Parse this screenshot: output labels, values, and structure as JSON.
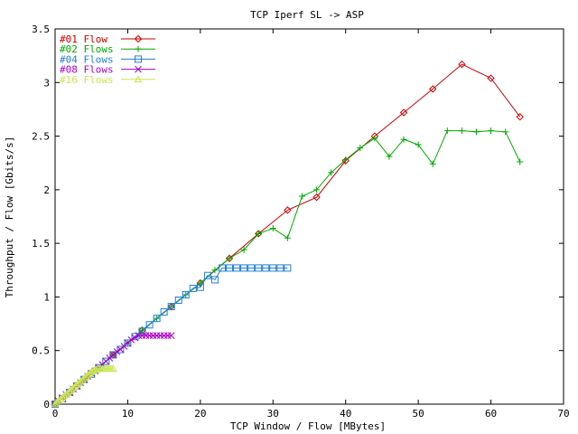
{
  "chart_data": {
    "type": "line",
    "title": "TCP Iperf SL -> ASP",
    "xlabel": "TCP Window / Flow [MBytes]",
    "ylabel": "Throughput / Flow [Gbits/s]",
    "xlim": [
      0,
      70
    ],
    "ylim": [
      0,
      3.5
    ],
    "xticks": [
      "0",
      "10",
      "20",
      "30",
      "40",
      "50",
      "60",
      "70"
    ],
    "yticks": [
      "0",
      "0.5",
      "1",
      "1.5",
      "2",
      "2.5",
      "3",
      "3.5"
    ],
    "grid": false,
    "legend_position": "top-left",
    "series": [
      {
        "name": "#01 Flow",
        "color": "#cc0000",
        "marker": "diamond",
        "x": [
          0,
          4,
          8,
          12,
          16,
          20,
          24,
          28,
          32,
          36,
          40,
          44,
          48,
          52,
          56,
          60,
          64
        ],
        "y": [
          0,
          0.23,
          0.46,
          0.69,
          0.91,
          1.13,
          1.36,
          1.59,
          1.81,
          1.93,
          2.27,
          2.5,
          2.72,
          2.94,
          3.17,
          3.04,
          2.68
        ]
      },
      {
        "name": "#02 Flows",
        "color": "#00aa00",
        "marker": "plus",
        "x": [
          0,
          2,
          4,
          6,
          8,
          10,
          12,
          14,
          16,
          18,
          20,
          22,
          24,
          26,
          28,
          30,
          32,
          34,
          36,
          38,
          40,
          42,
          44,
          46,
          48,
          50,
          52,
          54,
          56,
          58,
          60,
          62,
          64
        ],
        "y": [
          0,
          0.11,
          0.23,
          0.34,
          0.46,
          0.57,
          0.69,
          0.8,
          0.91,
          1.02,
          1.13,
          1.25,
          1.36,
          1.44,
          1.59,
          1.64,
          1.55,
          1.94,
          2.0,
          2.16,
          2.28,
          2.39,
          2.48,
          2.31,
          2.47,
          2.42,
          2.24,
          2.55,
          2.55,
          2.54,
          2.55,
          2.54,
          2.26
        ]
      },
      {
        "name": "#04 Flows",
        "color": "#1e7fd6",
        "marker": "square",
        "x": [
          0,
          1,
          2,
          3,
          4,
          5,
          6,
          7,
          8,
          9,
          10,
          11,
          12,
          13,
          14,
          15,
          16,
          17,
          18,
          19,
          20,
          21,
          22,
          23,
          24,
          25,
          26,
          27,
          28,
          29,
          30,
          31,
          32
        ],
        "y": [
          0,
          0.05,
          0.11,
          0.17,
          0.23,
          0.28,
          0.34,
          0.4,
          0.46,
          0.51,
          0.57,
          0.63,
          0.68,
          0.74,
          0.8,
          0.86,
          0.91,
          0.97,
          1.02,
          1.08,
          1.09,
          1.2,
          1.16,
          1.27,
          1.27,
          1.27,
          1.27,
          1.27,
          1.27,
          1.27,
          1.27,
          1.27,
          1.27
        ]
      },
      {
        "name": "#08 Flows",
        "color": "#aa00cc",
        "marker": "cross",
        "x": [
          0,
          0.5,
          1,
          1.5,
          2,
          2.5,
          3,
          3.5,
          4,
          4.5,
          5,
          5.5,
          6,
          6.5,
          7,
          7.5,
          8,
          8.5,
          9,
          9.5,
          10,
          10.5,
          11,
          11.5,
          12,
          12.5,
          13,
          13.5,
          14,
          14.5,
          15,
          15.5,
          16
        ],
        "y": [
          0,
          0.03,
          0.06,
          0.09,
          0.11,
          0.14,
          0.17,
          0.2,
          0.23,
          0.26,
          0.29,
          0.31,
          0.34,
          0.37,
          0.4,
          0.43,
          0.46,
          0.49,
          0.51,
          0.54,
          0.57,
          0.6,
          0.62,
          0.64,
          0.64,
          0.64,
          0.64,
          0.64,
          0.64,
          0.64,
          0.64,
          0.64,
          0.64
        ]
      },
      {
        "name": "#16 Flows",
        "color": "#c8e650",
        "marker": "triangle",
        "x": [
          0,
          0.25,
          0.5,
          0.75,
          1,
          1.25,
          1.5,
          1.75,
          2,
          2.25,
          2.5,
          2.75,
          3,
          3.25,
          3.5,
          3.75,
          4,
          4.25,
          4.5,
          4.75,
          5,
          5.25,
          5.5,
          5.75,
          6,
          6.25,
          6.5,
          6.75,
          7,
          7.25,
          7.5,
          7.75,
          8
        ],
        "y": [
          0,
          0.015,
          0.03,
          0.045,
          0.06,
          0.075,
          0.09,
          0.105,
          0.12,
          0.135,
          0.15,
          0.165,
          0.18,
          0.195,
          0.21,
          0.225,
          0.24,
          0.255,
          0.27,
          0.285,
          0.3,
          0.31,
          0.32,
          0.32,
          0.33,
          0.33,
          0.33,
          0.33,
          0.33,
          0.33,
          0.33,
          0.33,
          0.33
        ]
      }
    ]
  }
}
